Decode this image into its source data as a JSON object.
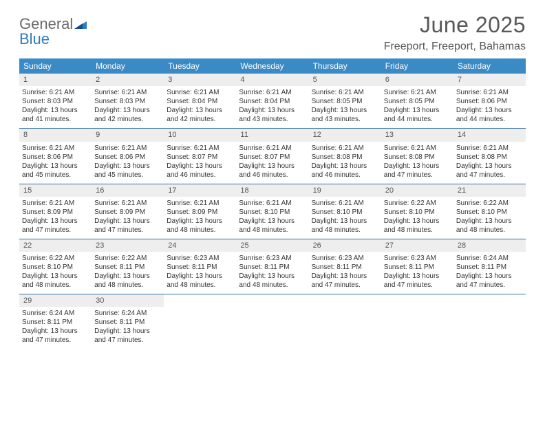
{
  "brand": {
    "word1": "General",
    "word2": "Blue"
  },
  "title": "June 2025",
  "subtitle": "Freeport, Freeport, Bahamas",
  "colors": {
    "header_bg": "#3a8ac6",
    "header_text": "#ffffff",
    "daynum_bg": "#eeeeee",
    "week_divider": "#2f6fa3",
    "body_text": "#333333",
    "title_text": "#585858",
    "logo_gray": "#6a6a6a",
    "logo_blue": "#2f7bbf"
  },
  "label": {
    "sunrise": "Sunrise:",
    "sunset": "Sunset:",
    "daylight": "Daylight:"
  },
  "dow": [
    "Sunday",
    "Monday",
    "Tuesday",
    "Wednesday",
    "Thursday",
    "Friday",
    "Saturday"
  ],
  "weeks": [
    [
      {
        "n": "1",
        "sr": "6:21 AM",
        "ss": "8:03 PM",
        "dl": "13 hours and 41 minutes."
      },
      {
        "n": "2",
        "sr": "6:21 AM",
        "ss": "8:03 PM",
        "dl": "13 hours and 42 minutes."
      },
      {
        "n": "3",
        "sr": "6:21 AM",
        "ss": "8:04 PM",
        "dl": "13 hours and 42 minutes."
      },
      {
        "n": "4",
        "sr": "6:21 AM",
        "ss": "8:04 PM",
        "dl": "13 hours and 43 minutes."
      },
      {
        "n": "5",
        "sr": "6:21 AM",
        "ss": "8:05 PM",
        "dl": "13 hours and 43 minutes."
      },
      {
        "n": "6",
        "sr": "6:21 AM",
        "ss": "8:05 PM",
        "dl": "13 hours and 44 minutes."
      },
      {
        "n": "7",
        "sr": "6:21 AM",
        "ss": "8:06 PM",
        "dl": "13 hours and 44 minutes."
      }
    ],
    [
      {
        "n": "8",
        "sr": "6:21 AM",
        "ss": "8:06 PM",
        "dl": "13 hours and 45 minutes."
      },
      {
        "n": "9",
        "sr": "6:21 AM",
        "ss": "8:06 PM",
        "dl": "13 hours and 45 minutes."
      },
      {
        "n": "10",
        "sr": "6:21 AM",
        "ss": "8:07 PM",
        "dl": "13 hours and 46 minutes."
      },
      {
        "n": "11",
        "sr": "6:21 AM",
        "ss": "8:07 PM",
        "dl": "13 hours and 46 minutes."
      },
      {
        "n": "12",
        "sr": "6:21 AM",
        "ss": "8:08 PM",
        "dl": "13 hours and 46 minutes."
      },
      {
        "n": "13",
        "sr": "6:21 AM",
        "ss": "8:08 PM",
        "dl": "13 hours and 47 minutes."
      },
      {
        "n": "14",
        "sr": "6:21 AM",
        "ss": "8:08 PM",
        "dl": "13 hours and 47 minutes."
      }
    ],
    [
      {
        "n": "15",
        "sr": "6:21 AM",
        "ss": "8:09 PM",
        "dl": "13 hours and 47 minutes."
      },
      {
        "n": "16",
        "sr": "6:21 AM",
        "ss": "8:09 PM",
        "dl": "13 hours and 47 minutes."
      },
      {
        "n": "17",
        "sr": "6:21 AM",
        "ss": "8:09 PM",
        "dl": "13 hours and 48 minutes."
      },
      {
        "n": "18",
        "sr": "6:21 AM",
        "ss": "8:10 PM",
        "dl": "13 hours and 48 minutes."
      },
      {
        "n": "19",
        "sr": "6:21 AM",
        "ss": "8:10 PM",
        "dl": "13 hours and 48 minutes."
      },
      {
        "n": "20",
        "sr": "6:22 AM",
        "ss": "8:10 PM",
        "dl": "13 hours and 48 minutes."
      },
      {
        "n": "21",
        "sr": "6:22 AM",
        "ss": "8:10 PM",
        "dl": "13 hours and 48 minutes."
      }
    ],
    [
      {
        "n": "22",
        "sr": "6:22 AM",
        "ss": "8:10 PM",
        "dl": "13 hours and 48 minutes."
      },
      {
        "n": "23",
        "sr": "6:22 AM",
        "ss": "8:11 PM",
        "dl": "13 hours and 48 minutes."
      },
      {
        "n": "24",
        "sr": "6:23 AM",
        "ss": "8:11 PM",
        "dl": "13 hours and 48 minutes."
      },
      {
        "n": "25",
        "sr": "6:23 AM",
        "ss": "8:11 PM",
        "dl": "13 hours and 48 minutes."
      },
      {
        "n": "26",
        "sr": "6:23 AM",
        "ss": "8:11 PM",
        "dl": "13 hours and 47 minutes."
      },
      {
        "n": "27",
        "sr": "6:23 AM",
        "ss": "8:11 PM",
        "dl": "13 hours and 47 minutes."
      },
      {
        "n": "28",
        "sr": "6:24 AM",
        "ss": "8:11 PM",
        "dl": "13 hours and 47 minutes."
      }
    ],
    [
      {
        "n": "29",
        "sr": "6:24 AM",
        "ss": "8:11 PM",
        "dl": "13 hours and 47 minutes."
      },
      {
        "n": "30",
        "sr": "6:24 AM",
        "ss": "8:11 PM",
        "dl": "13 hours and 47 minutes."
      },
      null,
      null,
      null,
      null,
      null
    ]
  ]
}
